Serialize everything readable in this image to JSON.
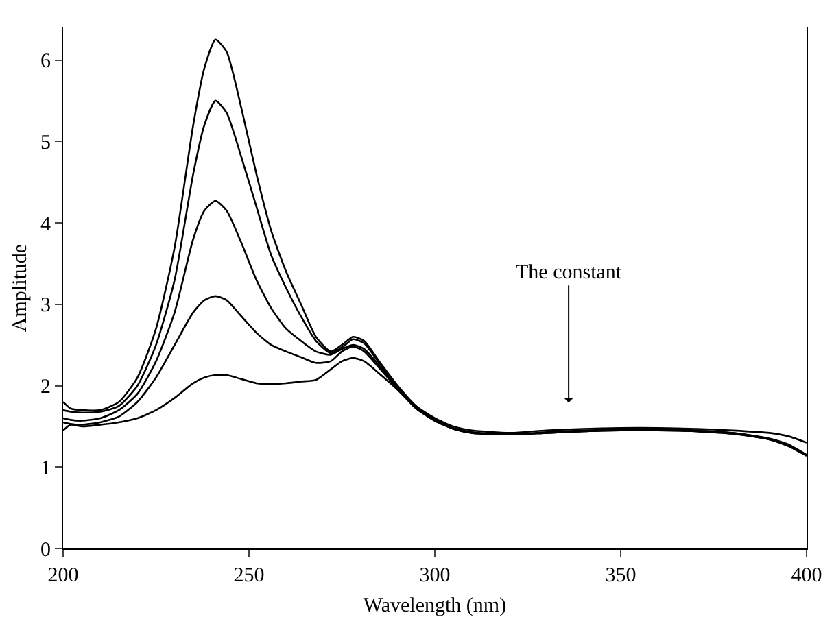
{
  "chart_data": {
    "type": "line",
    "xlabel": "Wavelength (nm)",
    "ylabel": "Amplitude",
    "xlim": [
      200,
      400
    ],
    "xticks": [
      200,
      250,
      300,
      350,
      400
    ],
    "ylim": [
      0,
      6.4
    ],
    "yticks": [
      0,
      1,
      2,
      3,
      4,
      5,
      6
    ],
    "grid": false,
    "marker": "none",
    "line_style": "solid",
    "annotations": [
      "The constant"
    ],
    "x": [
      200,
      202,
      205,
      210,
      215,
      220,
      225,
      230,
      235,
      238,
      241,
      244,
      248,
      252,
      256,
      260,
      264,
      268,
      272,
      275,
      278,
      281,
      285,
      290,
      295,
      300,
      305,
      310,
      320,
      330,
      340,
      350,
      360,
      370,
      380,
      390,
      395,
      400
    ],
    "series": [
      {
        "color": "#000000",
        "values": [
          1.8,
          1.72,
          1.7,
          1.7,
          1.8,
          2.1,
          2.7,
          3.7,
          5.2,
          5.9,
          6.25,
          6.1,
          5.4,
          4.6,
          3.9,
          3.4,
          3.0,
          2.6,
          2.42,
          2.5,
          2.6,
          2.55,
          2.3,
          2.0,
          1.75,
          1.6,
          1.5,
          1.45,
          1.42,
          1.45,
          1.47,
          1.48,
          1.48,
          1.47,
          1.45,
          1.42,
          1.38,
          1.3
        ]
      },
      {
        "color": "#000000",
        "values": [
          1.7,
          1.68,
          1.67,
          1.68,
          1.75,
          2.0,
          2.5,
          3.3,
          4.6,
          5.2,
          5.5,
          5.35,
          4.8,
          4.2,
          3.6,
          3.2,
          2.85,
          2.55,
          2.4,
          2.47,
          2.57,
          2.52,
          2.28,
          1.98,
          1.73,
          1.58,
          1.48,
          1.43,
          1.4,
          1.43,
          1.45,
          1.46,
          1.46,
          1.45,
          1.42,
          1.35,
          1.28,
          1.15
        ]
      },
      {
        "color": "#000000",
        "values": [
          1.6,
          1.58,
          1.57,
          1.6,
          1.7,
          1.9,
          2.3,
          2.9,
          3.8,
          4.15,
          4.27,
          4.15,
          3.75,
          3.3,
          2.95,
          2.7,
          2.55,
          2.42,
          2.38,
          2.45,
          2.5,
          2.45,
          2.25,
          1.97,
          1.72,
          1.57,
          1.47,
          1.42,
          1.4,
          1.42,
          1.44,
          1.46,
          1.46,
          1.45,
          1.42,
          1.35,
          1.27,
          1.15
        ]
      },
      {
        "color": "#000000",
        "values": [
          1.55,
          1.53,
          1.52,
          1.55,
          1.62,
          1.8,
          2.1,
          2.5,
          2.9,
          3.05,
          3.1,
          3.05,
          2.85,
          2.65,
          2.5,
          2.42,
          2.35,
          2.28,
          2.3,
          2.42,
          2.48,
          2.42,
          2.22,
          1.96,
          1.72,
          1.57,
          1.47,
          1.42,
          1.4,
          1.42,
          1.44,
          1.45,
          1.45,
          1.44,
          1.41,
          1.34,
          1.26,
          1.14
        ]
      },
      {
        "color": "#000000",
        "values": [
          1.45,
          1.52,
          1.5,
          1.52,
          1.55,
          1.6,
          1.7,
          1.85,
          2.03,
          2.1,
          2.13,
          2.13,
          2.08,
          2.03,
          2.02,
          2.03,
          2.05,
          2.07,
          2.2,
          2.3,
          2.34,
          2.3,
          2.15,
          1.95,
          1.72,
          1.57,
          1.47,
          1.42,
          1.4,
          1.42,
          1.44,
          1.45,
          1.45,
          1.44,
          1.41,
          1.34,
          1.26,
          1.14
        ]
      }
    ]
  }
}
